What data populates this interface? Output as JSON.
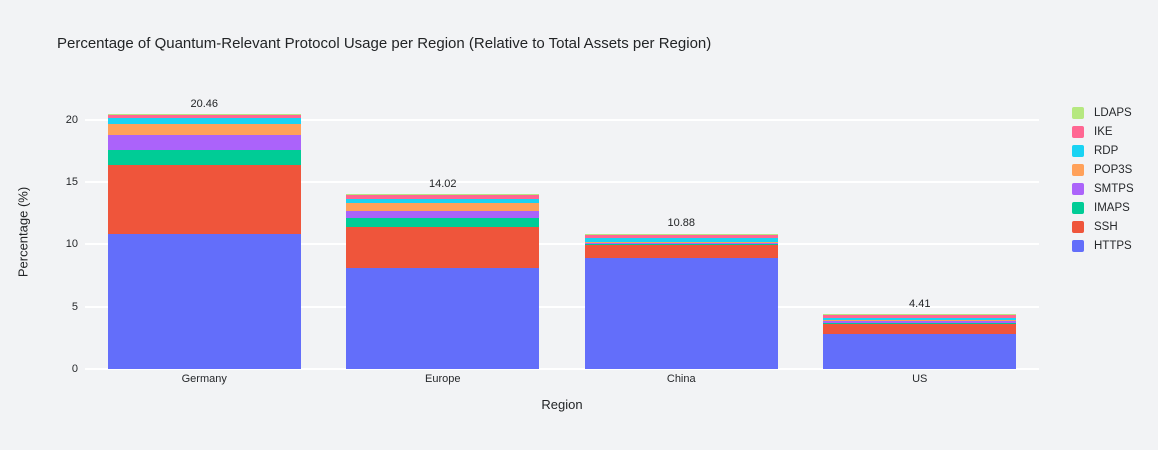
{
  "chart_data": {
    "type": "bar",
    "stacked": true,
    "title": "Percentage of Quantum-Relevant Protocol Usage per Region (Relative to Total Assets per Region)",
    "xlabel": "Region",
    "ylabel": "Percentage (%)",
    "categories": [
      "Germany",
      "Europe",
      "China",
      "US"
    ],
    "totals": [
      "20.46",
      "14.02",
      "10.88",
      "4.41"
    ],
    "ylim": [
      0,
      22
    ],
    "yticks": [
      0,
      5,
      10,
      15,
      20
    ],
    "grid": true,
    "gridline_color": "#ffffff",
    "background_color": "#f2f3f5",
    "legend_position": "right",
    "legend_order": [
      "LDAPS",
      "IKE",
      "RDP",
      "POP3S",
      "SMTPS",
      "IMAPS",
      "SSH",
      "HTTPS"
    ],
    "series": [
      {
        "name": "HTTPS",
        "color": "#636EFA",
        "values": [
          10.83,
          8.08,
          8.93,
          2.81
        ]
      },
      {
        "name": "SSH",
        "color": "#EF553B",
        "values": [
          5.52,
          3.32,
          1.08,
          0.78
        ]
      },
      {
        "name": "IMAPS",
        "color": "#00CC96",
        "values": [
          1.2,
          0.72,
          0.04,
          0.12
        ]
      },
      {
        "name": "SMTPS",
        "color": "#AB63FA",
        "values": [
          1.21,
          0.55,
          0.05,
          0.12
        ]
      },
      {
        "name": "POP3S",
        "color": "#FFA15A",
        "values": [
          0.93,
          0.62,
          0.06,
          0.12
        ]
      },
      {
        "name": "RDP",
        "color": "#19D3F3",
        "values": [
          0.48,
          0.35,
          0.35,
          0.18
        ]
      },
      {
        "name": "IKE",
        "color": "#FF6692",
        "values": [
          0.24,
          0.33,
          0.29,
          0.18
        ]
      },
      {
        "name": "LDAPS",
        "color": "#B6E880",
        "values": [
          0.05,
          0.05,
          0.08,
          0.1
        ]
      }
    ]
  }
}
